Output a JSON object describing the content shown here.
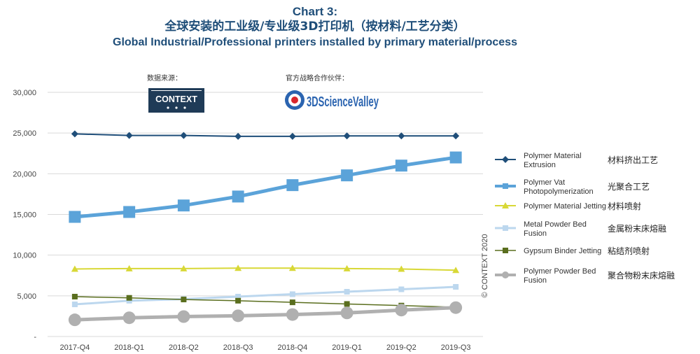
{
  "titles": {
    "line1": "Chart 3:",
    "line2": "全球安装的工业级/专业级3D打印机（按材料/工艺分类）",
    "line3": "Global Industrial/Professional printers installed by primary material/process"
  },
  "logos": {
    "data_source_label": "数据来源：",
    "data_source_name": "CONTEXT",
    "partner_label": "官方战略合作伙伴：",
    "partner_name": "3DScienceValley"
  },
  "copyright": "© CONTEXT 2020",
  "chart_data": {
    "type": "line",
    "categories": [
      "2017-Q4",
      "2018-Q1",
      "2018-Q2",
      "2018-Q3",
      "2018-Q4",
      "2019-Q1",
      "2019-Q2",
      "2019-Q3"
    ],
    "y_ticks": [
      "-",
      "5,000",
      "10,000",
      "15,000",
      "20,000",
      "25,000",
      "30,000"
    ],
    "ylim": [
      0,
      30000
    ],
    "grid": true,
    "legend_position": "right",
    "series": [
      {
        "name": "Polymer Material Extrusion",
        "name_cn": "材料挤出工艺",
        "color": "#1f4e79",
        "marker": "diamond",
        "values": [
          24900,
          24700,
          24700,
          24600,
          24600,
          24650,
          24650,
          24650
        ]
      },
      {
        "name": "Polymer Vat Photopolymerization",
        "name_cn": "光聚合工艺",
        "color": "#5ba3d9",
        "marker": "square",
        "values": [
          14700,
          15300,
          16100,
          17200,
          18600,
          19800,
          21000,
          22000
        ]
      },
      {
        "name": "Polymer Material Jetting",
        "name_cn": "材料喷射",
        "color": "#d8d836",
        "marker": "triangle",
        "values": [
          8300,
          8350,
          8350,
          8400,
          8400,
          8350,
          8300,
          8150
        ]
      },
      {
        "name": "Metal Powder Bed Fusion",
        "name_cn": "金属粉末床熔融",
        "color": "#bcd7ee",
        "marker": "square",
        "values": [
          3950,
          4400,
          4600,
          4900,
          5200,
          5500,
          5800,
          6100
        ]
      },
      {
        "name": "Gypsum Binder Jetting",
        "name_cn": "粘结剂喷射",
        "color": "#5a6e1e",
        "marker": "square",
        "values": [
          4900,
          4750,
          4550,
          4400,
          4200,
          4000,
          3800,
          3600
        ]
      },
      {
        "name": "Polymer Powder Bed Fusion",
        "name_cn": "聚合物粉末床熔融",
        "color": "#b0b0b0",
        "marker": "circle",
        "values": [
          2050,
          2300,
          2450,
          2550,
          2700,
          2900,
          3250,
          3550
        ]
      }
    ]
  }
}
